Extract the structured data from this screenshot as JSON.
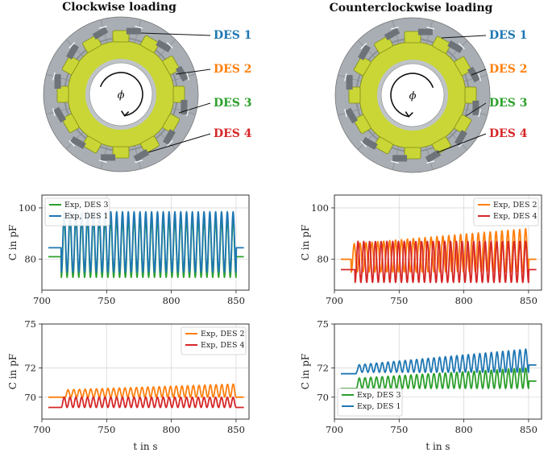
{
  "figure": {
    "left_title": "Clockwise loading",
    "right_title": "Counterclockwise loading",
    "phi": "ϕ",
    "des_labels": [
      "DES 1",
      "DES 2",
      "DES 3",
      "DES 4"
    ],
    "des_colors": [
      "#1f77b4",
      "#ff7f0e",
      "#2ca02c",
      "#d62728"
    ],
    "rotor_yellow": "#c9d636",
    "stator_gray": "#a8aeb4"
  },
  "chart_data": [
    {
      "id": "cw-top",
      "type": "line",
      "xlabel": "",
      "ylabel": "C in pF",
      "xlim": [
        700,
        860
      ],
      "ylim": [
        68,
        105
      ],
      "xticks": [
        700,
        750,
        800,
        850
      ],
      "yticks": [
        80,
        100
      ],
      "grid": true,
      "legend": "top-left",
      "series": [
        {
          "name": "Exp, DES 3",
          "color": "#2ca02c",
          "baseline": 81,
          "low": 73,
          "high": 96,
          "start": 715,
          "end": 850,
          "cycles": 30
        },
        {
          "name": "Exp, DES 1",
          "color": "#1f77b4",
          "baseline": 84.5,
          "low": 75,
          "high": 98.5,
          "start": 715,
          "end": 850,
          "cycles": 30
        }
      ]
    },
    {
      "id": "ccw-top",
      "type": "line",
      "xlabel": "",
      "ylabel": "C in pF",
      "xlim": [
        700,
        860
      ],
      "ylim": [
        68,
        105
      ],
      "xticks": [
        700,
        750,
        800,
        850
      ],
      "yticks": [
        80,
        100
      ],
      "grid": true,
      "legend": "top-right",
      "series": [
        {
          "name": "Exp, DES 2",
          "color": "#ff7f0e",
          "baseline": 80,
          "low": 75,
          "high_start": 86,
          "high_end": 92,
          "start": 713,
          "end": 850,
          "cycles": 30
        },
        {
          "name": "Exp, DES 4",
          "color": "#d62728",
          "baseline": 76,
          "low": 71,
          "high": 87,
          "start": 716,
          "end": 850,
          "cycles": 30
        }
      ]
    },
    {
      "id": "cw-bottom",
      "type": "line",
      "xlabel": "t in s",
      "ylabel": "C in pF",
      "xlim": [
        700,
        860
      ],
      "ylim": [
        68.5,
        75
      ],
      "xticks": [
        700,
        750,
        800,
        850
      ],
      "yticks": [
        70,
        72,
        75
      ],
      "grid": true,
      "legend": "top-right",
      "series": [
        {
          "name": "Exp, DES 2",
          "color": "#ff7f0e",
          "baseline": 70,
          "low": 70,
          "high_start": 70.5,
          "high_end": 70.9,
          "start": 718,
          "end": 850,
          "cycles": 30
        },
        {
          "name": "Exp, DES 4",
          "color": "#d62728",
          "baseline": 69.3,
          "low": 69.3,
          "high": 70,
          "start": 715,
          "end": 850,
          "cycles": 30
        }
      ]
    },
    {
      "id": "ccw-bottom",
      "type": "line",
      "xlabel": "t in s",
      "ylabel": "C in pF",
      "xlim": [
        700,
        860
      ],
      "ylim": [
        68.5,
        75
      ],
      "xticks": [
        700,
        750,
        800,
        850
      ],
      "yticks": [
        70,
        72,
        75
      ],
      "grid": true,
      "legend": "bottom-left",
      "series": [
        {
          "name": "Exp, DES 3",
          "color": "#2ca02c",
          "baseline": 70.6,
          "low": 70.6,
          "high_start": 71.3,
          "high_end": 72,
          "start": 717,
          "end": 850,
          "cycles": 30,
          "after": 71.1
        },
        {
          "name": "Exp, DES 1",
          "color": "#1f77b4",
          "baseline": 71.6,
          "low": 71.7,
          "high_start": 72.2,
          "high_end": 73.3,
          "start": 717,
          "end": 850,
          "cycles": 30,
          "after": 72.2
        }
      ]
    }
  ]
}
